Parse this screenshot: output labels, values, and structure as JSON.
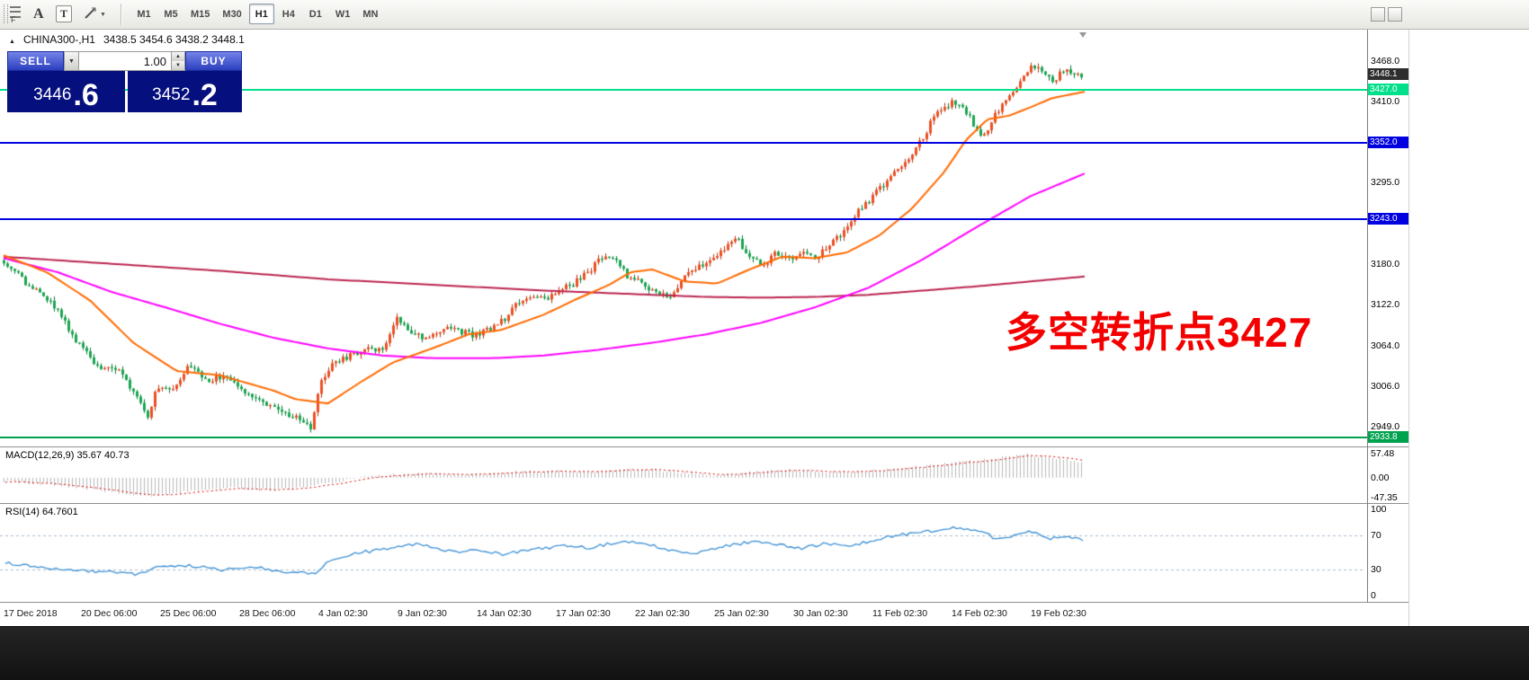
{
  "toolbar": {
    "f_label": "F",
    "tool_a": "A",
    "tool_t": "T",
    "timeframes": [
      "M1",
      "M5",
      "M15",
      "M30",
      "H1",
      "H4",
      "D1",
      "W1",
      "MN"
    ],
    "active_timeframe": "H1"
  },
  "icons": {
    "dropdown_arrow": "▼",
    "spin_up": "▲",
    "spin_down": "▼",
    "header_marker": "▲"
  },
  "chart_header": {
    "symbol": "CHINA300-,H1",
    "ohlc": "3438.5 3454.6 3438.2 3448.1"
  },
  "trade_panel": {
    "sell_label": "SELL",
    "buy_label": "BUY",
    "volume": "1.00",
    "sell_price_main": "3446",
    "sell_price_frac": ".6",
    "buy_price_main": "3452",
    "buy_price_frac": ".2"
  },
  "annotation": {
    "text": "多空转折点3427",
    "color": "#f40000"
  },
  "price_axis": {
    "plain": [
      {
        "v": 3468.0,
        "text": "3468.0"
      },
      {
        "v": 3410.0,
        "text": "3410.0"
      },
      {
        "v": 3295.0,
        "text": "3295.0"
      },
      {
        "v": 3180.0,
        "text": "3180.0"
      },
      {
        "v": 3122.0,
        "text": "3122.0"
      },
      {
        "v": 3064.0,
        "text": "3064.0"
      },
      {
        "v": 3006.0,
        "text": "3006.0"
      },
      {
        "v": 2949.0,
        "text": "2949.0"
      }
    ],
    "tags": [
      {
        "v": 3448.1,
        "text": "3448.1",
        "bg": "#2e2e2e",
        "fg": "#ffffff",
        "name": "bid-price-tag"
      },
      {
        "v": 3427.0,
        "text": "3427.0",
        "bg": "#00e08a",
        "fg": "#ffffff",
        "name": "hline-price-tag"
      },
      {
        "v": 3352.0,
        "text": "3352.0",
        "bg": "#0000e0",
        "fg": "#ffffff",
        "name": "hline-price-tag"
      },
      {
        "v": 3243.0,
        "text": "3243.0",
        "bg": "#0000e0",
        "fg": "#ffffff",
        "name": "hline-price-tag"
      },
      {
        "v": 2933.8,
        "text": "2933.8",
        "bg": "#00a24e",
        "fg": "#ffffff",
        "name": "hline-price-tag"
      }
    ]
  },
  "hlines": [
    {
      "value": 3427.0,
      "color": "#00e08a"
    },
    {
      "value": 3352.0,
      "color": "#0000e0"
    },
    {
      "value": 3243.0,
      "color": "#0000e0"
    },
    {
      "value": 2933.8,
      "color": "#00a24e"
    }
  ],
  "macd": {
    "label": "MACD(12,26,9) 35.67 40.73",
    "scale": [
      {
        "v": 57.48,
        "text": "57.48"
      },
      {
        "v": 0,
        "text": "0.00"
      },
      {
        "v": -47.35,
        "text": "-47.35"
      }
    ]
  },
  "rsi": {
    "label": "RSI(14) 64.7601",
    "scale": [
      {
        "v": 100,
        "text": "100"
      },
      {
        "v": 70,
        "text": "70"
      },
      {
        "v": 30,
        "text": "30"
      },
      {
        "v": 0,
        "text": "0"
      }
    ],
    "levels": [
      70,
      30
    ]
  },
  "time_axis": [
    "17 Dec 2018",
    "20 Dec 06:00",
    "25 Dec 06:00",
    "28 Dec 06:00",
    "4 Jan 02:30",
    "9 Jan 02:30",
    "14 Jan 02:30",
    "17 Jan 02:30",
    "22 Jan 02:30",
    "25 Jan 02:30",
    "30 Jan 02:30",
    "11 Feb 02:30",
    "14 Feb 02:30",
    "19 Feb 02:30"
  ],
  "chart_data": {
    "type": "candlestick",
    "symbol": "CHINA300-",
    "timeframe": "H1",
    "current_bar": {
      "open": 3438.5,
      "high": 3454.6,
      "low": 3438.2,
      "close": 3448.1
    },
    "bid": 3448.1,
    "sell_quote": 3446.6,
    "buy_quote": 3452.2,
    "period_high": 3468.0,
    "period_low": 2933.8,
    "price_axis_range": [
      2921,
      3512
    ],
    "bar_count": 300,
    "colors": {
      "up_fill": "#ed4f22",
      "up_border": "#b93413",
      "down_fill": "#18a750",
      "down_border": "#0b7a35",
      "ma_fast": "#ff6a00",
      "ma_mid": "#ff00ff",
      "ma_slow": "#bb2450",
      "macd_hist": "#b9b9b9",
      "macd_signal": "#dd0000",
      "rsi_line": "#3b8fd4"
    },
    "price_path": [
      [
        0,
        3185
      ],
      [
        0.022,
        3150
      ],
      [
        0.047,
        3120
      ],
      [
        0.072,
        3060
      ],
      [
        0.088,
        3035
      ],
      [
        0.105,
        3030
      ],
      [
        0.126,
        2990
      ],
      [
        0.134,
        2962
      ],
      [
        0.142,
        3008
      ],
      [
        0.159,
        3000
      ],
      [
        0.171,
        3040
      ],
      [
        0.188,
        3012
      ],
      [
        0.205,
        3022
      ],
      [
        0.221,
        3000
      ],
      [
        0.238,
        2988
      ],
      [
        0.255,
        2972
      ],
      [
        0.271,
        2962
      ],
      [
        0.284,
        2945
      ],
      [
        0.292,
        3005
      ],
      [
        0.304,
        3038
      ],
      [
        0.321,
        3050
      ],
      [
        0.338,
        3058
      ],
      [
        0.354,
        3062
      ],
      [
        0.364,
        3105
      ],
      [
        0.375,
        3088
      ],
      [
        0.388,
        3075
      ],
      [
        0.4,
        3082
      ],
      [
        0.413,
        3090
      ],
      [
        0.425,
        3083
      ],
      [
        0.438,
        3078
      ],
      [
        0.45,
        3086
      ],
      [
        0.463,
        3100
      ],
      [
        0.475,
        3120
      ],
      [
        0.488,
        3135
      ],
      [
        0.504,
        3128
      ],
      [
        0.517,
        3145
      ],
      [
        0.529,
        3152
      ],
      [
        0.542,
        3168
      ],
      [
        0.556,
        3192
      ],
      [
        0.567,
        3188
      ],
      [
        0.579,
        3162
      ],
      [
        0.592,
        3152
      ],
      [
        0.604,
        3140
      ],
      [
        0.617,
        3132
      ],
      [
        0.629,
        3156
      ],
      [
        0.642,
        3172
      ],
      [
        0.654,
        3186
      ],
      [
        0.667,
        3200
      ],
      [
        0.679,
        3218
      ],
      [
        0.691,
        3192
      ],
      [
        0.704,
        3176
      ],
      [
        0.716,
        3196
      ],
      [
        0.729,
        3186
      ],
      [
        0.741,
        3196
      ],
      [
        0.754,
        3190
      ],
      [
        0.766,
        3206
      ],
      [
        0.779,
        3226
      ],
      [
        0.791,
        3252
      ],
      [
        0.804,
        3272
      ],
      [
        0.816,
        3292
      ],
      [
        0.829,
        3312
      ],
      [
        0.841,
        3332
      ],
      [
        0.854,
        3362
      ],
      [
        0.866,
        3398
      ],
      [
        0.879,
        3408
      ],
      [
        0.891,
        3402
      ],
      [
        0.899,
        3378
      ],
      [
        0.908,
        3358
      ],
      [
        0.92,
        3392
      ],
      [
        0.933,
        3420
      ],
      [
        0.945,
        3442
      ],
      [
        0.955,
        3462
      ],
      [
        0.966,
        3450
      ],
      [
        0.975,
        3440
      ],
      [
        0.983,
        3455
      ],
      [
        0.992,
        3446
      ],
      [
        1,
        3448
      ]
    ],
    "ma_fast": [
      [
        0,
        3192
      ],
      [
        0.04,
        3168
      ],
      [
        0.08,
        3128
      ],
      [
        0.12,
        3068
      ],
      [
        0.16,
        3028
      ],
      [
        0.2,
        3022
      ],
      [
        0.25,
        3000
      ],
      [
        0.27,
        2988
      ],
      [
        0.3,
        2982
      ],
      [
        0.33,
        3012
      ],
      [
        0.36,
        3040
      ],
      [
        0.4,
        3062
      ],
      [
        0.43,
        3080
      ],
      [
        0.46,
        3086
      ],
      [
        0.5,
        3108
      ],
      [
        0.53,
        3130
      ],
      [
        0.56,
        3150
      ],
      [
        0.58,
        3168
      ],
      [
        0.6,
        3172
      ],
      [
        0.63,
        3155
      ],
      [
        0.66,
        3152
      ],
      [
        0.69,
        3172
      ],
      [
        0.72,
        3190
      ],
      [
        0.75,
        3188
      ],
      [
        0.78,
        3196
      ],
      [
        0.81,
        3220
      ],
      [
        0.84,
        3258
      ],
      [
        0.87,
        3310
      ],
      [
        0.89,
        3355
      ],
      [
        0.91,
        3385
      ],
      [
        0.93,
        3390
      ],
      [
        0.95,
        3402
      ],
      [
        0.97,
        3415
      ],
      [
        1,
        3424
      ]
    ],
    "ma_mid": [
      [
        0,
        3188
      ],
      [
        0.05,
        3168
      ],
      [
        0.1,
        3140
      ],
      [
        0.15,
        3118
      ],
      [
        0.2,
        3095
      ],
      [
        0.25,
        3075
      ],
      [
        0.3,
        3060
      ],
      [
        0.35,
        3050
      ],
      [
        0.4,
        3046
      ],
      [
        0.45,
        3046
      ],
      [
        0.5,
        3050
      ],
      [
        0.55,
        3058
      ],
      [
        0.6,
        3068
      ],
      [
        0.65,
        3080
      ],
      [
        0.7,
        3096
      ],
      [
        0.75,
        3118
      ],
      [
        0.8,
        3146
      ],
      [
        0.85,
        3186
      ],
      [
        0.9,
        3232
      ],
      [
        0.95,
        3276
      ],
      [
        1,
        3308
      ]
    ],
    "ma_slow": [
      [
        0,
        3190
      ],
      [
        0.1,
        3180
      ],
      [
        0.2,
        3170
      ],
      [
        0.3,
        3158
      ],
      [
        0.4,
        3150
      ],
      [
        0.5,
        3142
      ],
      [
        0.6,
        3136
      ],
      [
        0.65,
        3133
      ],
      [
        0.7,
        3132
      ],
      [
        0.75,
        3133
      ],
      [
        0.8,
        3136
      ],
      [
        0.85,
        3142
      ],
      [
        0.9,
        3148
      ],
      [
        0.95,
        3155
      ],
      [
        1,
        3162
      ]
    ],
    "macd": {
      "range": [
        -60,
        72
      ],
      "path": [
        [
          0,
          -8
        ],
        [
          0.05,
          -18
        ],
        [
          0.1,
          -33
        ],
        [
          0.13,
          -44
        ],
        [
          0.15,
          -40
        ],
        [
          0.18,
          -30
        ],
        [
          0.21,
          -24
        ],
        [
          0.25,
          -30
        ],
        [
          0.28,
          -22
        ],
        [
          0.31,
          -8
        ],
        [
          0.34,
          4
        ],
        [
          0.38,
          10
        ],
        [
          0.42,
          7
        ],
        [
          0.46,
          12
        ],
        [
          0.5,
          16
        ],
        [
          0.54,
          14
        ],
        [
          0.57,
          18
        ],
        [
          0.6,
          20
        ],
        [
          0.63,
          12
        ],
        [
          0.66,
          6
        ],
        [
          0.7,
          14
        ],
        [
          0.73,
          18
        ],
        [
          0.76,
          13
        ],
        [
          0.8,
          16
        ],
        [
          0.84,
          24
        ],
        [
          0.88,
          36
        ],
        [
          0.92,
          46
        ],
        [
          0.95,
          55
        ],
        [
          0.97,
          48
        ],
        [
          1,
          38
        ]
      ]
    },
    "rsi": {
      "range": [
        -7,
        106
      ],
      "path": [
        [
          0,
          38
        ],
        [
          0.03,
          33
        ],
        [
          0.06,
          30
        ],
        [
          0.09,
          28
        ],
        [
          0.12,
          25
        ],
        [
          0.14,
          32
        ],
        [
          0.17,
          35
        ],
        [
          0.2,
          30
        ],
        [
          0.23,
          33
        ],
        [
          0.26,
          28
        ],
        [
          0.29,
          26
        ],
        [
          0.3,
          40
        ],
        [
          0.33,
          50
        ],
        [
          0.36,
          55
        ],
        [
          0.38,
          60
        ],
        [
          0.4,
          55
        ],
        [
          0.42,
          50
        ],
        [
          0.44,
          53
        ],
        [
          0.46,
          48
        ],
        [
          0.48,
          52
        ],
        [
          0.5,
          55
        ],
        [
          0.52,
          58
        ],
        [
          0.54,
          55
        ],
        [
          0.56,
          60
        ],
        [
          0.58,
          62
        ],
        [
          0.6,
          58
        ],
        [
          0.62,
          52
        ],
        [
          0.64,
          48
        ],
        [
          0.66,
          55
        ],
        [
          0.68,
          60
        ],
        [
          0.7,
          63
        ],
        [
          0.72,
          58
        ],
        [
          0.74,
          55
        ],
        [
          0.76,
          60
        ],
        [
          0.78,
          58
        ],
        [
          0.8,
          62
        ],
        [
          0.82,
          68
        ],
        [
          0.84,
          72
        ],
        [
          0.86,
          75
        ],
        [
          0.88,
          78
        ],
        [
          0.9,
          76
        ],
        [
          0.91,
          72
        ],
        [
          0.92,
          65
        ],
        [
          0.94,
          70
        ],
        [
          0.95,
          74
        ],
        [
          0.96,
          70
        ],
        [
          0.97,
          66
        ],
        [
          0.98,
          68
        ],
        [
          1,
          65
        ]
      ]
    }
  }
}
